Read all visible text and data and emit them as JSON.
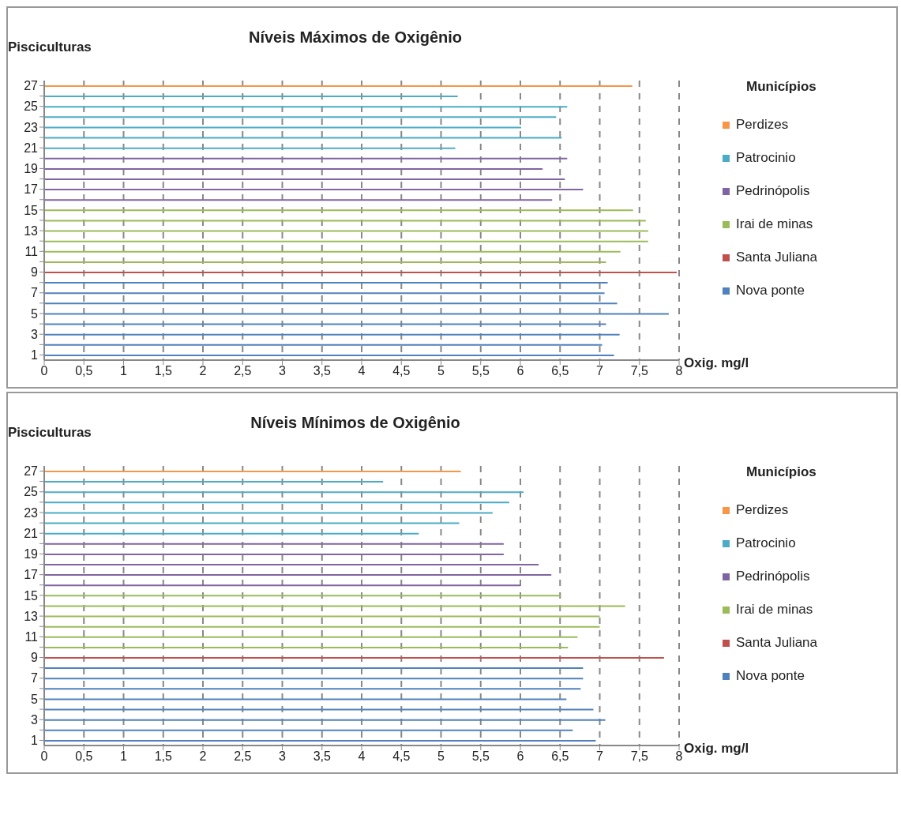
{
  "chart_data": [
    {
      "type": "bar",
      "orientation": "horizontal",
      "stacked": true,
      "title": "Níveis Máximos de Oxigênio",
      "xlabel": "Oxig. mg/l",
      "ylabel": "Pisciculturas",
      "legend_title": "Municípios",
      "legend": "right",
      "grid": "x",
      "categories": [
        "27",
        null,
        "25",
        null,
        "23",
        null,
        "21",
        null,
        "19",
        null,
        "17",
        null,
        "15",
        null,
        "13",
        null,
        "11",
        null,
        "9",
        null,
        "7",
        null,
        "5",
        null,
        "3",
        null,
        "1"
      ],
      "xlim": [
        0,
        8
      ],
      "xticks": [
        0,
        {
          "value": 0.5,
          "label": "0,5"
        },
        1,
        {
          "value": 1.5,
          "label": "1,5"
        },
        2,
        {
          "value": 2.5,
          "label": "2,5"
        },
        3,
        {
          "value": 3.5,
          "label": "3,5"
        },
        4,
        {
          "value": 4.5,
          "label": "4,5"
        },
        5,
        {
          "value": 5.5,
          "label": "5,5"
        },
        6,
        {
          "value": 6.5,
          "label": "6,5"
        },
        7,
        {
          "value": 7.5,
          "label": "7,5"
        },
        8
      ],
      "series": [
        {
          "name": "Nova ponte",
          "color": "#4f81bd",
          "values": [
            null,
            null,
            null,
            null,
            null,
            null,
            null,
            null,
            null,
            null,
            null,
            null,
            null,
            null,
            null,
            null,
            null,
            null,
            null,
            7.1,
            7.06,
            7.22,
            7.87,
            7.08,
            7.25,
            7.03,
            7.18
          ]
        },
        {
          "name": "Santa  Juliana",
          "color": "#c0504d",
          "values": [
            null,
            null,
            null,
            null,
            null,
            null,
            null,
            null,
            null,
            null,
            null,
            null,
            null,
            null,
            null,
            null,
            null,
            null,
            7.97,
            null,
            null,
            null,
            null,
            null,
            null,
            null,
            null
          ]
        },
        {
          "name": "Irai de minas",
          "color": "#9bbb59",
          "values": [
            null,
            null,
            null,
            null,
            null,
            null,
            null,
            null,
            null,
            null,
            null,
            null,
            7.42,
            7.58,
            7.61,
            7.61,
            7.26,
            7.08,
            null,
            null,
            null,
            null,
            null,
            null,
            null,
            null,
            null
          ]
        },
        {
          "name": "Pedrinópolis",
          "color": "#8064a2",
          "values": [
            null,
            null,
            null,
            null,
            null,
            null,
            null,
            6.59,
            6.28,
            6.56,
            6.79,
            6.4,
            null,
            null,
            null,
            null,
            null,
            null,
            null,
            null,
            null,
            null,
            null,
            null,
            null,
            null,
            null
          ]
        },
        {
          "name": "Patrocinio",
          "color": "#4bacc6",
          "values": [
            null,
            5.21,
            6.59,
            6.45,
            6.01,
            6.52,
            5.18,
            null,
            null,
            null,
            null,
            null,
            null,
            null,
            null,
            null,
            null,
            null,
            null,
            null,
            null,
            null,
            null,
            null,
            null,
            null,
            null
          ]
        },
        {
          "name": "Perdizes",
          "color": "#f79646",
          "values": [
            7.41,
            null,
            null,
            null,
            null,
            null,
            null,
            null,
            null,
            null,
            null,
            null,
            null,
            null,
            null,
            null,
            null,
            null,
            null,
            null,
            null,
            null,
            null,
            null,
            null,
            null,
            null
          ]
        }
      ]
    },
    {
      "type": "bar",
      "orientation": "horizontal",
      "stacked": true,
      "title": "Níveis Mínimos de Oxigênio",
      "xlabel": "Oxig. mg/l",
      "ylabel": "Pisciculturas",
      "legend_title": "Municípios",
      "legend": "right",
      "grid": "x",
      "categories": [
        "27",
        null,
        "25",
        null,
        "23",
        null,
        "21",
        null,
        "19",
        null,
        "17",
        null,
        "15",
        null,
        "13",
        null,
        "11",
        null,
        "9",
        null,
        "7",
        null,
        "5",
        null,
        "3",
        null,
        "1"
      ],
      "xlim": [
        0,
        8
      ],
      "xticks": [
        0,
        {
          "value": 0.5,
          "label": "0,5"
        },
        1,
        {
          "value": 1.5,
          "label": "1,5"
        },
        2,
        {
          "value": 2.5,
          "label": "2,5"
        },
        3,
        {
          "value": 3.5,
          "label": "3,5"
        },
        4,
        {
          "value": 4.5,
          "label": "4,5"
        },
        5,
        {
          "value": 5.5,
          "label": "5,5"
        },
        6,
        {
          "value": 6.5,
          "label": "6,5"
        },
        7,
        {
          "value": 7.5,
          "label": "7,5"
        },
        8
      ],
      "series": [
        {
          "name": "Nova ponte",
          "color": "#4f81bd",
          "values": [
            null,
            null,
            null,
            null,
            null,
            null,
            null,
            null,
            null,
            null,
            null,
            null,
            null,
            null,
            null,
            null,
            null,
            null,
            null,
            6.79,
            6.79,
            6.76,
            6.58,
            6.92,
            7.07,
            6.66,
            6.95
          ]
        },
        {
          "name": "Santa  Juliana",
          "color": "#c0504d",
          "values": [
            null,
            null,
            null,
            null,
            null,
            null,
            null,
            null,
            null,
            null,
            null,
            null,
            null,
            null,
            null,
            null,
            null,
            null,
            7.81,
            null,
            null,
            null,
            null,
            null,
            null,
            null,
            null
          ]
        },
        {
          "name": "Irai de minas",
          "color": "#9bbb59",
          "values": [
            null,
            null,
            null,
            null,
            null,
            null,
            null,
            null,
            null,
            null,
            null,
            null,
            6.51,
            7.32,
            7.0,
            7.0,
            6.72,
            6.6,
            null,
            null,
            null,
            null,
            null,
            null,
            null,
            null,
            null
          ]
        },
        {
          "name": "Pedrinópolis",
          "color": "#8064a2",
          "values": [
            null,
            null,
            null,
            null,
            null,
            null,
            null,
            5.79,
            5.79,
            6.23,
            6.39,
            6.0,
            null,
            null,
            null,
            null,
            null,
            null,
            null,
            null,
            null,
            null,
            null,
            null,
            null,
            null,
            null
          ]
        },
        {
          "name": "Patrocinio",
          "color": "#4bacc6",
          "values": [
            null,
            4.27,
            6.04,
            5.86,
            5.65,
            5.23,
            4.72,
            null,
            null,
            null,
            null,
            null,
            null,
            null,
            null,
            null,
            null,
            null,
            null,
            null,
            null,
            null,
            null,
            null,
            null,
            null,
            null
          ]
        },
        {
          "name": "Perdizes",
          "color": "#f79646",
          "values": [
            5.25,
            null,
            null,
            null,
            null,
            null,
            null,
            null,
            null,
            null,
            null,
            null,
            null,
            null,
            null,
            null,
            null,
            null,
            null,
            null,
            null,
            null,
            null,
            null,
            null,
            null,
            null
          ]
        }
      ]
    }
  ]
}
